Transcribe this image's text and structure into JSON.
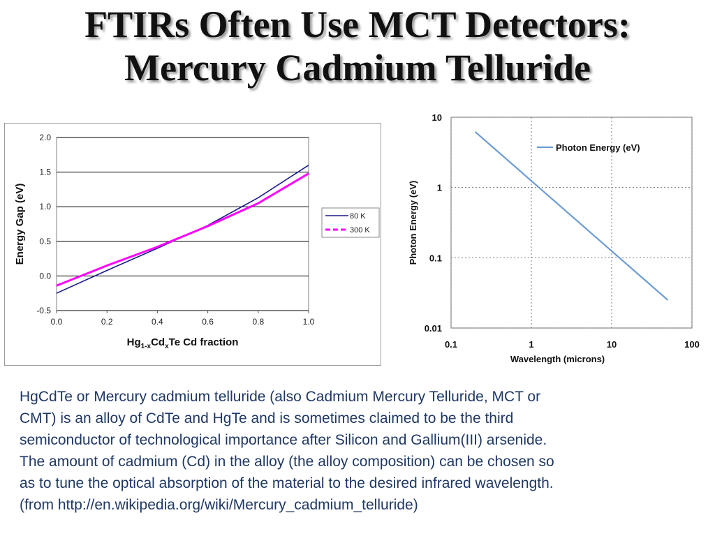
{
  "slide": {
    "title_line1": "FTIRs Often Use MCT Detectors:",
    "title_line2": "Mercury Cadmium Telluride",
    "body": "HgCdTe or Mercury cadmium telluride (also Cadmium Mercury Telluride, MCT or\nCMT) is an alloy of CdTe and HgTe and is sometimes claimed to be the third\nsemiconductor of technological importance after Silicon and Gallium(III) arsenide.\nThe amount of cadmium (Cd) in the alloy (the alloy composition) can be chosen so\nas to tune the optical absorption of the material to the desired infrared wavelength.\n(from http://en.wikipedia.org/wiki/Mercury_cadmium_telluride)"
  },
  "chart_data": [
    {
      "type": "line",
      "title": "",
      "ylabel": "Energy Gap (eV)",
      "xlabel_parts": [
        "Hg",
        "1-x",
        "Cd",
        "x",
        "Te Cd fraction"
      ],
      "xlim": [
        0,
        1
      ],
      "ylim": [
        -0.5,
        2.0
      ],
      "xticks": [
        "0.0",
        "0.2",
        "0.4",
        "0.6",
        "0.8",
        "1.0"
      ],
      "yticks": [
        "-0.5",
        "0.0",
        "0.5",
        "1.0",
        "1.5",
        "2.0"
      ],
      "grid": "horizontal",
      "legend_position": "right",
      "series": [
        {
          "name": "80 K",
          "color": "#1a1a8c",
          "dash": "solid",
          "x": [
            0,
            0.2,
            0.4,
            0.6,
            0.8,
            1.0
          ],
          "y": [
            -0.25,
            0.08,
            0.4,
            0.73,
            1.13,
            1.6
          ]
        },
        {
          "name": "300 K",
          "color": "#ff00ff",
          "dash": "dashed",
          "x": [
            0,
            0.2,
            0.4,
            0.6,
            0.8,
            1.0
          ],
          "y": [
            -0.14,
            0.15,
            0.42,
            0.72,
            1.05,
            1.48
          ]
        }
      ]
    },
    {
      "type": "line",
      "title": "",
      "xlabel": "Wavelength (microns)",
      "ylabel": "Photon Energy (eV)",
      "xscale": "log",
      "yscale": "log",
      "xlim": [
        0.1,
        100
      ],
      "ylim": [
        0.01,
        10
      ],
      "xticks": [
        "0.1",
        "1",
        "10",
        "100"
      ],
      "yticks": [
        "0.01",
        "0.1",
        "1",
        "10"
      ],
      "grid": "dotted",
      "legend_position": "top-right",
      "series": [
        {
          "name": "Photon Energy (eV)",
          "color": "#6a9bd2",
          "x": [
            0.2,
            50
          ],
          "y": [
            6.2,
            0.025
          ]
        }
      ]
    }
  ]
}
